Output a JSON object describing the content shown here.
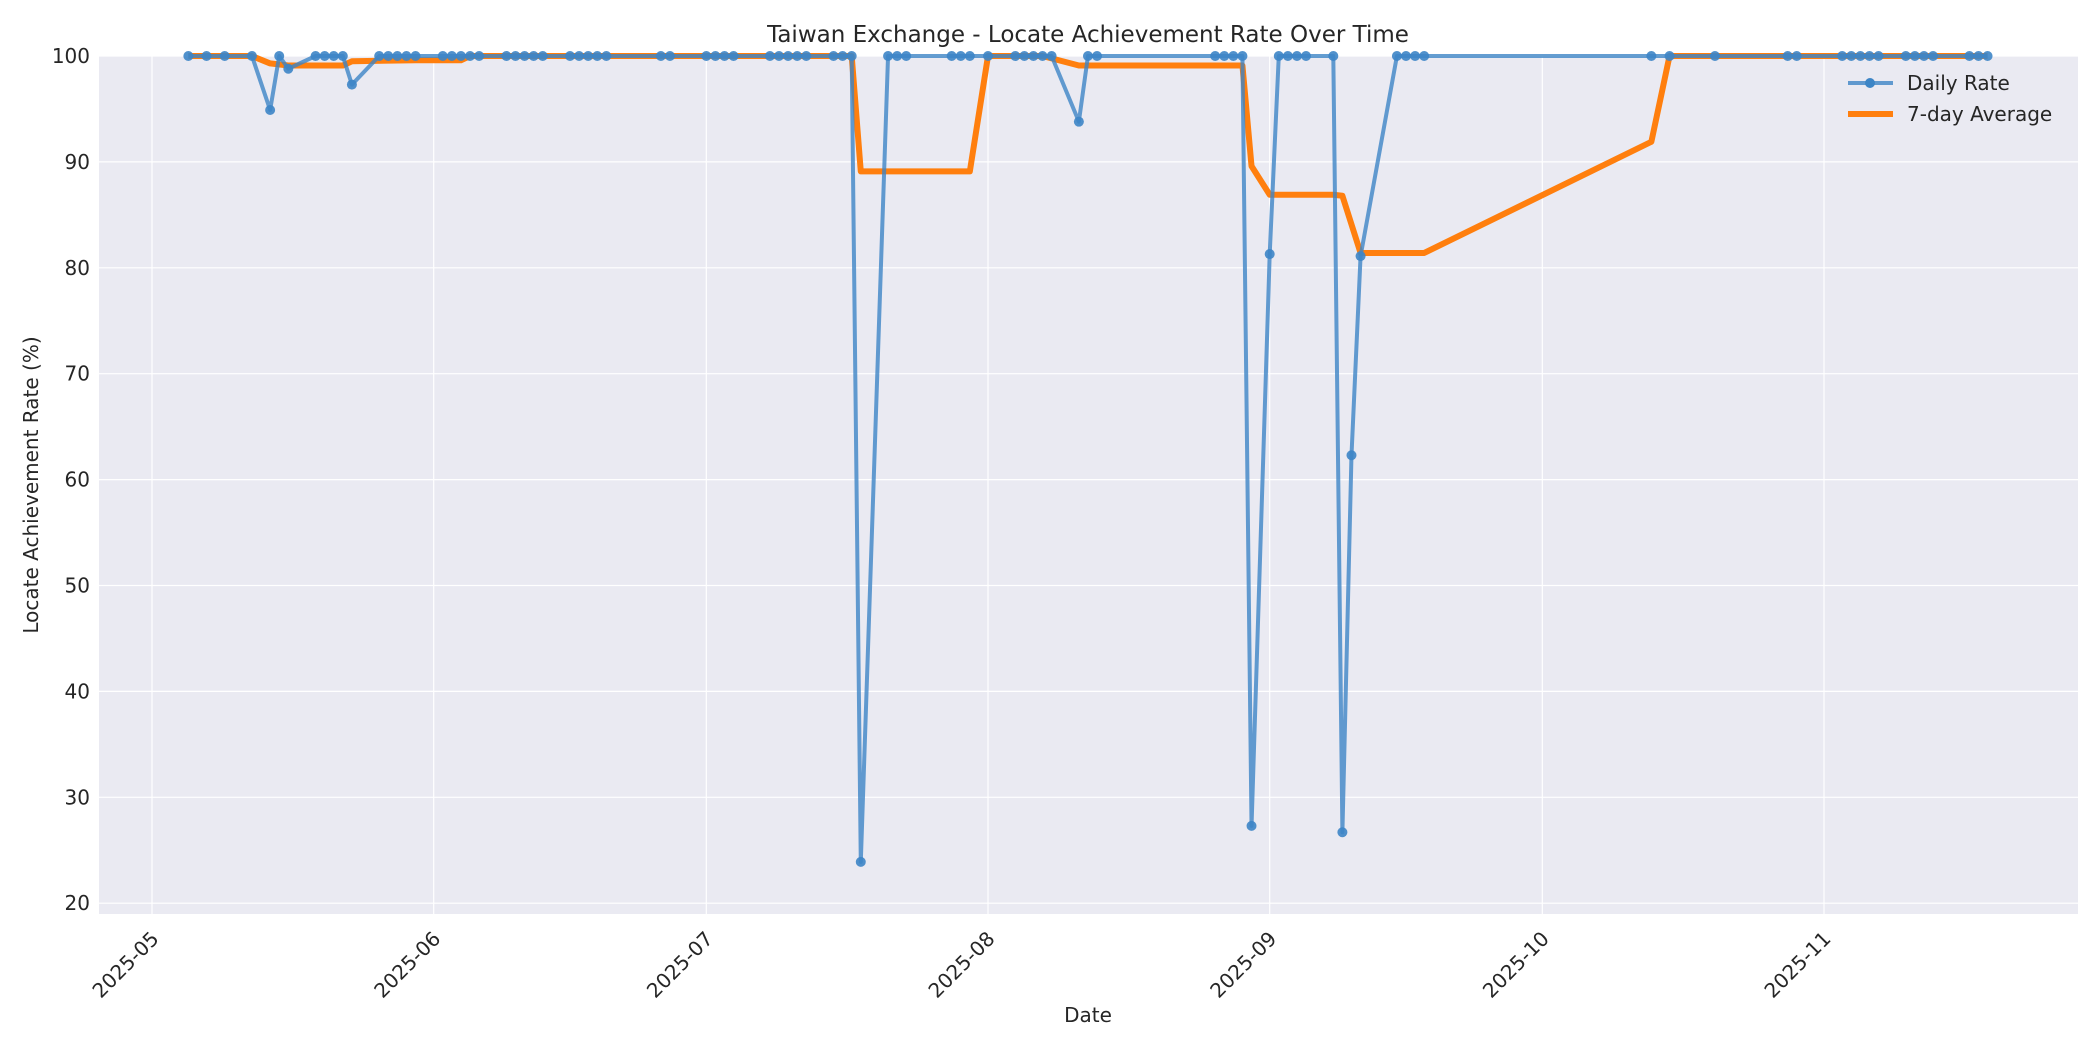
{
  "chart_data": {
    "type": "line",
    "title": "Taiwan Exchange - Locate Achievement Rate Over Time",
    "xlabel": "Date",
    "ylabel": "Locate Achievement Rate (%)",
    "ylim": [
      19,
      100
    ],
    "yticks": [
      20,
      30,
      40,
      50,
      60,
      70,
      80,
      90,
      100
    ],
    "xlim": [
      "2025-04-27",
      "2025-11-27"
    ],
    "xticks": [
      "2025-05",
      "2025-06",
      "2025-07",
      "2025-08",
      "2025-09",
      "2025-10",
      "2025-11"
    ],
    "grid": true,
    "legend_position": "upper right",
    "colors": {
      "daily": "#3d85c6",
      "avg": "#ff7f0e",
      "background": "#eaeaf2",
      "grid": "#ffffff"
    },
    "series": [
      {
        "name": "Daily Rate",
        "style": "line-marker",
        "points": [
          [
            "2025-05-05",
            100
          ],
          [
            "2025-05-07",
            100
          ],
          [
            "2025-05-09",
            100
          ],
          [
            "2025-05-12",
            100
          ],
          [
            "2025-05-14",
            94.9
          ],
          [
            "2025-05-15",
            100
          ],
          [
            "2025-05-16",
            98.8
          ],
          [
            "2025-05-19",
            100
          ],
          [
            "2025-05-20",
            100
          ],
          [
            "2025-05-21",
            100
          ],
          [
            "2025-05-22",
            100
          ],
          [
            "2025-05-23",
            97.3
          ],
          [
            "2025-05-26",
            100
          ],
          [
            "2025-05-27",
            100
          ],
          [
            "2025-05-28",
            100
          ],
          [
            "2025-05-29",
            100
          ],
          [
            "2025-05-30",
            100
          ],
          [
            "2025-06-02",
            100
          ],
          [
            "2025-06-03",
            100
          ],
          [
            "2025-06-04",
            100
          ],
          [
            "2025-06-05",
            100
          ],
          [
            "2025-06-06",
            100
          ],
          [
            "2025-06-09",
            100
          ],
          [
            "2025-06-10",
            100
          ],
          [
            "2025-06-11",
            100
          ],
          [
            "2025-06-12",
            100
          ],
          [
            "2025-06-13",
            100
          ],
          [
            "2025-06-16",
            100
          ],
          [
            "2025-06-17",
            100
          ],
          [
            "2025-06-18",
            100
          ],
          [
            "2025-06-19",
            100
          ],
          [
            "2025-06-20",
            100
          ],
          [
            "2025-06-26",
            100
          ],
          [
            "2025-06-27",
            100
          ],
          [
            "2025-07-01",
            100
          ],
          [
            "2025-07-02",
            100
          ],
          [
            "2025-07-03",
            100
          ],
          [
            "2025-07-04",
            100
          ],
          [
            "2025-07-08",
            100
          ],
          [
            "2025-07-09",
            100
          ],
          [
            "2025-07-10",
            100
          ],
          [
            "2025-07-11",
            100
          ],
          [
            "2025-07-12",
            100
          ],
          [
            "2025-07-15",
            100
          ],
          [
            "2025-07-16",
            100
          ],
          [
            "2025-07-17",
            100
          ],
          [
            "2025-07-18",
            23.9
          ],
          [
            "2025-07-21",
            100
          ],
          [
            "2025-07-22",
            100
          ],
          [
            "2025-07-23",
            100
          ],
          [
            "2025-07-28",
            100
          ],
          [
            "2025-07-29",
            100
          ],
          [
            "2025-07-30",
            100
          ],
          [
            "2025-08-01",
            100
          ],
          [
            "2025-08-04",
            100
          ],
          [
            "2025-08-05",
            100
          ],
          [
            "2025-08-06",
            100
          ],
          [
            "2025-08-07",
            100
          ],
          [
            "2025-08-08",
            100
          ],
          [
            "2025-08-11",
            93.8
          ],
          [
            "2025-08-12",
            100
          ],
          [
            "2025-08-13",
            100
          ],
          [
            "2025-08-26",
            100
          ],
          [
            "2025-08-27",
            100
          ],
          [
            "2025-08-28",
            100
          ],
          [
            "2025-08-29",
            100
          ],
          [
            "2025-08-30",
            27.3
          ],
          [
            "2025-09-01",
            81.3
          ],
          [
            "2025-09-02",
            100
          ],
          [
            "2025-09-03",
            100
          ],
          [
            "2025-09-04",
            100
          ],
          [
            "2025-09-05",
            100
          ],
          [
            "2025-09-08",
            100
          ],
          [
            "2025-09-09",
            26.7
          ],
          [
            "2025-09-10",
            62.3
          ],
          [
            "2025-09-11",
            81.1
          ],
          [
            "2025-09-15",
            100
          ],
          [
            "2025-09-16",
            100
          ],
          [
            "2025-09-17",
            100
          ],
          [
            "2025-09-18",
            100
          ],
          [
            "2025-10-13",
            100
          ],
          [
            "2025-10-15",
            100
          ],
          [
            "2025-10-20",
            100
          ],
          [
            "2025-10-28",
            100
          ],
          [
            "2025-10-29",
            100
          ],
          [
            "2025-11-03",
            100
          ],
          [
            "2025-11-04",
            100
          ],
          [
            "2025-11-05",
            100
          ],
          [
            "2025-11-06",
            100
          ],
          [
            "2025-11-07",
            100
          ],
          [
            "2025-11-10",
            100
          ],
          [
            "2025-11-11",
            100
          ],
          [
            "2025-11-12",
            100
          ],
          [
            "2025-11-13",
            100
          ],
          [
            "2025-11-17",
            100
          ],
          [
            "2025-11-18",
            100
          ],
          [
            "2025-11-19",
            100
          ]
        ]
      },
      {
        "name": "7-day Average",
        "style": "line",
        "points": [
          [
            "2025-05-05",
            100
          ],
          [
            "2025-05-12",
            100
          ],
          [
            "2025-05-14",
            99.3
          ],
          [
            "2025-05-16",
            99.1
          ],
          [
            "2025-05-22",
            99.1
          ],
          [
            "2025-05-23",
            99.5
          ],
          [
            "2025-05-30",
            99.6
          ],
          [
            "2025-06-04",
            99.6
          ],
          [
            "2025-06-05",
            100
          ],
          [
            "2025-07-17",
            100
          ],
          [
            "2025-07-18",
            89.1
          ],
          [
            "2025-07-30",
            89.1
          ],
          [
            "2025-08-01",
            100
          ],
          [
            "2025-08-07",
            100
          ],
          [
            "2025-08-11",
            99.1
          ],
          [
            "2025-08-29",
            99.1
          ],
          [
            "2025-08-30",
            89.6
          ],
          [
            "2025-09-01",
            86.9
          ],
          [
            "2025-09-08",
            86.9
          ],
          [
            "2025-09-09",
            86.8
          ],
          [
            "2025-09-11",
            81.4
          ],
          [
            "2025-09-18",
            81.4
          ],
          [
            "2025-10-13",
            91.9
          ],
          [
            "2025-10-15",
            100
          ],
          [
            "2025-11-19",
            100
          ]
        ]
      }
    ]
  }
}
